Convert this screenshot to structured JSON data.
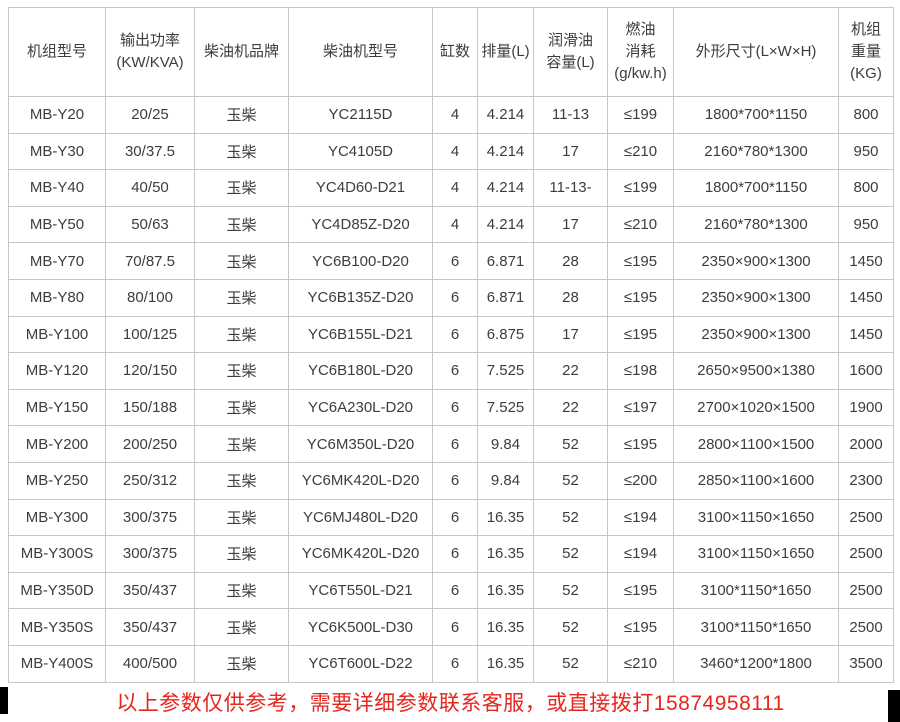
{
  "colors": {
    "border": "#c6c6c6",
    "text": "#3d3d3d",
    "footer_red": "#e8251d",
    "background": "#ffffff",
    "corner_mark": "#000000"
  },
  "table": {
    "headers": [
      "机组型号",
      "输出功率\n(KW/KVA)",
      "柴油机品牌",
      "柴油机型号",
      "缸数",
      "排量(L)",
      "润滑油\n容量(L)",
      "燃油\n消耗\n(g/kw.h)",
      "外形尺寸(L×W×H)",
      "机组\n重量\n(KG)"
    ],
    "rows": [
      [
        "MB-Y20",
        "20/25",
        "玉柴",
        "YC2115D",
        "4",
        "4.214",
        "11-13",
        "≤199",
        "1800*700*1150",
        "800"
      ],
      [
        "MB-Y30",
        "30/37.5",
        "玉柴",
        "YC4105D",
        "4",
        "4.214",
        "17",
        "≤210",
        "2160*780*1300",
        "950"
      ],
      [
        "MB-Y40",
        "40/50",
        "玉柴",
        "YC4D60-D21",
        "4",
        "4.214",
        "11-13-",
        "≤199",
        "1800*700*1150",
        "800"
      ],
      [
        "MB-Y50",
        "50/63",
        "玉柴",
        "YC4D85Z-D20",
        "4",
        "4.214",
        "17",
        "≤210",
        "2160*780*1300",
        "950"
      ],
      [
        "MB-Y70",
        "70/87.5",
        "玉柴",
        "YC6B100-D20",
        "6",
        "6.871",
        "28",
        "≤195",
        "2350×900×1300",
        "1450"
      ],
      [
        "MB-Y80",
        "80/100",
        "玉柴",
        "YC6B135Z-D20",
        "6",
        "6.871",
        "28",
        "≤195",
        "2350×900×1300",
        "1450"
      ],
      [
        "MB-Y100",
        "100/125",
        "玉柴",
        "YC6B155L-D21",
        "6",
        "6.875",
        "17",
        "≤195",
        "2350×900×1300",
        "1450"
      ],
      [
        "MB-Y120",
        "120/150",
        "玉柴",
        "YC6B180L-D20",
        "6",
        "7.525",
        "22",
        "≤198",
        "2650×9500×1380",
        "1600"
      ],
      [
        "MB-Y150",
        "150/188",
        "玉柴",
        "YC6A230L-D20",
        "6",
        "7.525",
        "22",
        "≤197",
        "2700×1020×1500",
        "1900"
      ],
      [
        "MB-Y200",
        "200/250",
        "玉柴",
        "YC6M350L-D20",
        "6",
        "9.84",
        "52",
        "≤195",
        "2800×1100×1500",
        "2000"
      ],
      [
        "MB-Y250",
        "250/312",
        "玉柴",
        "YC6MK420L-D20",
        "6",
        "9.84",
        "52",
        "≤200",
        "2850×1100×1600",
        "2300"
      ],
      [
        "MB-Y300",
        "300/375",
        "玉柴",
        "YC6MJ480L-D20",
        "6",
        "16.35",
        "52",
        "≤194",
        "3100×1150×1650",
        "2500"
      ],
      [
        "MB-Y300S",
        "300/375",
        "玉柴",
        "YC6MK420L-D20",
        "6",
        "16.35",
        "52",
        "≤194",
        "3100×1150×1650",
        "2500"
      ],
      [
        "MB-Y350D",
        "350/437",
        "玉柴",
        "YC6T550L-D21",
        "6",
        "16.35",
        "52",
        "≤195",
        "3100*1150*1650",
        "2500"
      ],
      [
        "MB-Y350S",
        "350/437",
        "玉柴",
        "YC6K500L-D30",
        "6",
        "16.35",
        "52",
        "≤195",
        "3100*1150*1650",
        "2500"
      ],
      [
        "MB-Y400S",
        "400/500",
        "玉柴",
        "YC6T600L-D22",
        "6",
        "16.35",
        "52",
        "≤210",
        "3460*1200*1800",
        "3500"
      ]
    ]
  },
  "footer": {
    "note": "以上参数仅供参考，需要详细参数联系客服，或直接拨打15874958111"
  }
}
